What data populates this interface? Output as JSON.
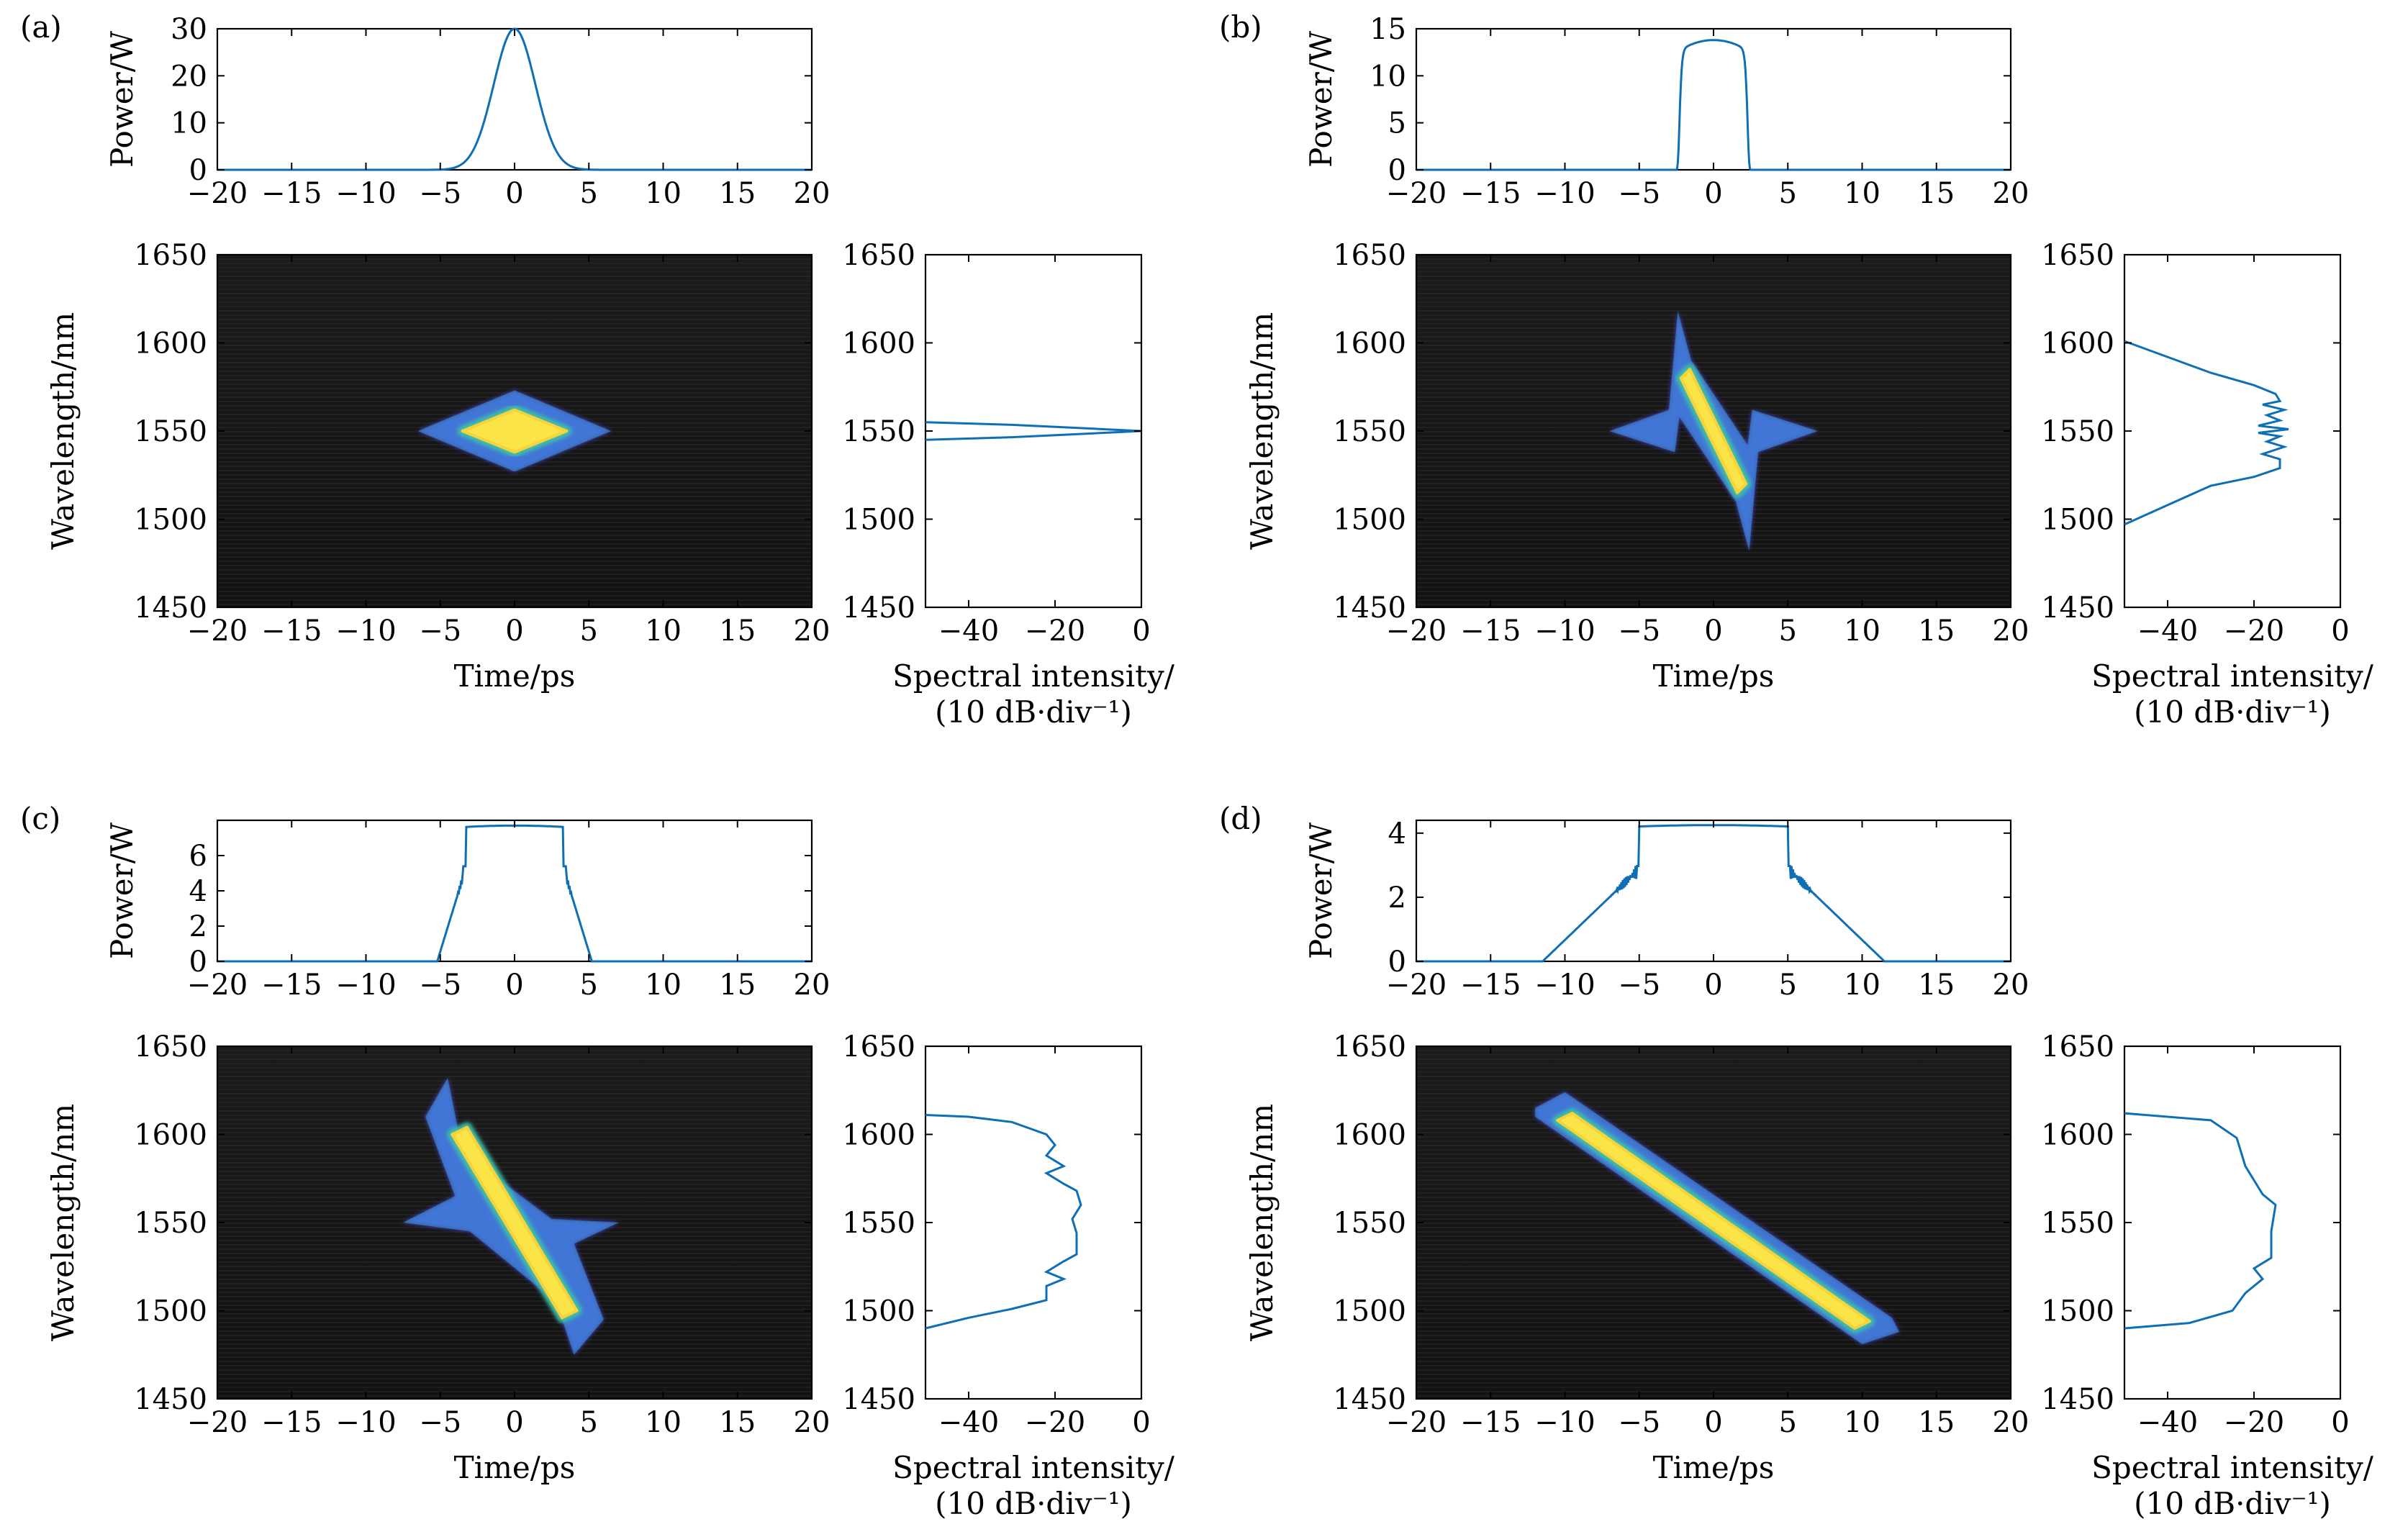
{
  "chart_data": [
    {
      "panel": "(a)",
      "type": "line",
      "power": {
        "ylabel": "Power/W",
        "ylim": [
          0,
          30
        ],
        "yticks": [
          0,
          10,
          20,
          30
        ],
        "xlim": [
          -20,
          20
        ],
        "xticks": [
          -20,
          -15,
          -10,
          -5,
          0,
          5,
          10,
          15,
          20
        ],
        "profile": "gaussian",
        "peak": 30,
        "width_ps": 1.4,
        "flat_half_width_ps": 0,
        "wing_half_width_ps": 0
      },
      "map": {
        "type": "heatmap",
        "xlabel": "Time/ps",
        "ylabel": "Wavelength/nm",
        "xlim": [
          -20,
          20
        ],
        "xticks": [
          -20,
          -15,
          -10,
          -5,
          0,
          5,
          10,
          15,
          20
        ],
        "ylim": [
          1450,
          1650
        ],
        "yticks": [
          1450,
          1500,
          1550,
          1600,
          1650
        ],
        "outline": [
          [
            -6.5,
            1550
          ],
          [
            0,
            1573
          ],
          [
            6.5,
            1550
          ],
          [
            0,
            1527
          ]
        ],
        "core": [
          [
            -3.5,
            1550
          ],
          [
            0,
            1562
          ],
          [
            3.5,
            1550
          ],
          [
            0,
            1538
          ]
        ]
      },
      "spectrum": {
        "xlabel_line1": "Spectral intensity/",
        "xlabel_line2": "(10 dB·div⁻¹)",
        "xlim": [
          -50,
          0
        ],
        "xticks": [
          -40,
          -20,
          0
        ],
        "ylim": [
          1450,
          1650
        ],
        "yticks": [
          1450,
          1500,
          1550,
          1600,
          1650
        ],
        "points": [
          [
            -50,
            1545
          ],
          [
            -30,
            1546.5
          ],
          [
            -10,
            1548.8
          ],
          [
            0,
            1550
          ],
          [
            -10,
            1551.2
          ],
          [
            -30,
            1553.5
          ],
          [
            -50,
            1555
          ]
        ]
      }
    },
    {
      "panel": "(b)",
      "type": "line",
      "power": {
        "ylabel": "Power/W",
        "ylim": [
          0,
          15
        ],
        "yticks": [
          0,
          5,
          10,
          15
        ],
        "xlim": [
          -20,
          20
        ],
        "xticks": [
          -20,
          -15,
          -10,
          -5,
          0,
          5,
          10,
          15,
          20
        ],
        "profile": "supergauss",
        "peak": 13.8,
        "width_ps": 2.2,
        "flat_half_width_ps": 2.3,
        "wing_half_width_ps": 0
      },
      "map": {
        "type": "heatmap",
        "xlabel": "Time/ps",
        "ylabel": "Wavelength/nm",
        "xlim": [
          -20,
          20
        ],
        "xticks": [
          -20,
          -15,
          -10,
          -5,
          0,
          5,
          10,
          15,
          20
        ],
        "ylim": [
          1450,
          1650
        ],
        "yticks": [
          1450,
          1500,
          1550,
          1600,
          1650
        ],
        "outline": [
          [
            -7,
            1550
          ],
          [
            -3,
            1562
          ],
          [
            -2.4,
            1618
          ],
          [
            -1.5,
            1590
          ],
          [
            2.3,
            1542
          ],
          [
            2.6,
            1562
          ],
          [
            7,
            1550
          ],
          [
            3,
            1538
          ],
          [
            2.4,
            1482
          ],
          [
            1.5,
            1510
          ],
          [
            -2.3,
            1558
          ],
          [
            -2.6,
            1538
          ]
        ],
        "core": [
          [
            -2.2,
            1580
          ],
          [
            -1.6,
            1585
          ],
          [
            2.2,
            1520
          ],
          [
            1.6,
            1515
          ]
        ]
      },
      "spectrum": {
        "xlabel_line1": "Spectral intensity/",
        "xlabel_line2": "(10 dB·div⁻¹)",
        "xlim": [
          -50,
          0
        ],
        "xticks": [
          -40,
          -20,
          0
        ],
        "ylim": [
          1450,
          1650
        ],
        "yticks": [
          1450,
          1500,
          1550,
          1600,
          1650
        ],
        "points": [
          [
            -50,
            1497
          ],
          [
            -40,
            1508
          ],
          [
            -30,
            1519
          ],
          [
            -20,
            1524
          ],
          [
            -14,
            1529
          ],
          [
            -14,
            1534
          ],
          [
            -18,
            1537
          ],
          [
            -13,
            1541
          ],
          [
            -17,
            1544
          ],
          [
            -14,
            1547
          ],
          [
            -19,
            1549
          ],
          [
            -12,
            1551
          ],
          [
            -19,
            1553
          ],
          [
            -14,
            1556
          ],
          [
            -17,
            1559
          ],
          [
            -13,
            1562
          ],
          [
            -18,
            1565
          ],
          [
            -14,
            1567
          ],
          [
            -15,
            1571
          ],
          [
            -20,
            1576
          ],
          [
            -30,
            1583
          ],
          [
            -40,
            1592
          ],
          [
            -50,
            1601
          ]
        ]
      }
    },
    {
      "panel": "(c)",
      "type": "line",
      "power": {
        "ylabel": "Power/W",
        "ylim": [
          0,
          8
        ],
        "yticks": [
          0,
          2,
          4,
          6
        ],
        "xlim": [
          -20,
          20
        ],
        "xticks": [
          -20,
          -15,
          -10,
          -5,
          0,
          5,
          10,
          15,
          20
        ],
        "profile": "flat",
        "peak": 7.7,
        "width_ps": 1.0,
        "flat_half_width_ps": 3.3,
        "wing_half_width_ps": 5.2
      },
      "map": {
        "type": "heatmap",
        "xlabel": "Time/ps",
        "ylabel": "Wavelength/nm",
        "xlim": [
          -20,
          20
        ],
        "xticks": [
          -20,
          -15,
          -10,
          -5,
          0,
          5,
          10,
          15,
          20
        ],
        "ylim": [
          1450,
          1650
        ],
        "yticks": [
          1450,
          1500,
          1550,
          1600,
          1650
        ],
        "outline": [
          [
            -6,
            1610
          ],
          [
            -4.5,
            1632
          ],
          [
            -3.5,
            1590
          ],
          [
            2.5,
            1552
          ],
          [
            7,
            1550
          ],
          [
            4,
            1538
          ],
          [
            6,
            1495
          ],
          [
            4,
            1475
          ],
          [
            2.8,
            1505
          ],
          [
            -3,
            1545
          ],
          [
            -7.5,
            1550
          ],
          [
            -4,
            1565
          ]
        ],
        "core": [
          [
            -4.2,
            1600
          ],
          [
            -3.2,
            1604
          ],
          [
            4.2,
            1500
          ],
          [
            3.2,
            1496
          ]
        ]
      },
      "spectrum": {
        "xlabel_line1": "Spectral intensity/",
        "xlabel_line2": "(10 dB·div⁻¹)",
        "xlim": [
          -50,
          0
        ],
        "xticks": [
          -40,
          -20,
          0
        ],
        "ylim": [
          1450,
          1650
        ],
        "yticks": [
          1450,
          1500,
          1550,
          1600,
          1650
        ],
        "points": [
          [
            -50,
            1490
          ],
          [
            -40,
            1496
          ],
          [
            -30,
            1501
          ],
          [
            -22,
            1506
          ],
          [
            -22,
            1514
          ],
          [
            -18,
            1518
          ],
          [
            -22,
            1522
          ],
          [
            -18,
            1528
          ],
          [
            -15,
            1532
          ],
          [
            -15,
            1544
          ],
          [
            -16,
            1552
          ],
          [
            -14,
            1560
          ],
          [
            -15,
            1568
          ],
          [
            -18,
            1572
          ],
          [
            -22,
            1578
          ],
          [
            -18,
            1582
          ],
          [
            -22,
            1588
          ],
          [
            -20,
            1594
          ],
          [
            -22,
            1600
          ],
          [
            -30,
            1607
          ],
          [
            -40,
            1610
          ],
          [
            -50,
            1611
          ]
        ]
      }
    },
    {
      "panel": "(d)",
      "type": "line",
      "power": {
        "ylabel": "Power/W",
        "ylim": [
          0,
          4.4
        ],
        "yticks": [
          0,
          2,
          4
        ],
        "xlim": [
          -20,
          20
        ],
        "xticks": [
          -20,
          -15,
          -10,
          -5,
          0,
          5,
          10,
          15,
          20
        ],
        "profile": "flat",
        "peak": 4.25,
        "width_ps": 1.0,
        "flat_half_width_ps": 5.0,
        "wing_half_width_ps": 11.5
      },
      "map": {
        "type": "heatmap",
        "xlabel": "Time/ps",
        "ylabel": "Wavelength/nm",
        "xlim": [
          -20,
          20
        ],
        "xticks": [
          -20,
          -15,
          -10,
          -5,
          0,
          5,
          10,
          15,
          20
        ],
        "ylim": [
          1450,
          1650
        ],
        "yticks": [
          1450,
          1500,
          1550,
          1600,
          1650
        ],
        "outline": [
          [
            -12,
            1615
          ],
          [
            -10,
            1624
          ],
          [
            12,
            1496
          ],
          [
            12.5,
            1488
          ],
          [
            10,
            1481
          ],
          [
            -12,
            1610
          ]
        ],
        "core": [
          [
            -10.5,
            1608
          ],
          [
            -9.5,
            1612
          ],
          [
            10.5,
            1494
          ],
          [
            9.5,
            1490
          ]
        ]
      },
      "spectrum": {
        "xlabel_line1": "Spectral intensity/",
        "xlabel_line2": "(10 dB·div⁻¹)",
        "xlim": [
          -50,
          0
        ],
        "xticks": [
          -40,
          -20,
          0
        ],
        "ylim": [
          1450,
          1650
        ],
        "yticks": [
          1450,
          1500,
          1550,
          1600,
          1650
        ],
        "points": [
          [
            -50,
            1490
          ],
          [
            -35,
            1493
          ],
          [
            -25,
            1500
          ],
          [
            -22,
            1510
          ],
          [
            -18,
            1518
          ],
          [
            -20,
            1524
          ],
          [
            -16,
            1530
          ],
          [
            -16,
            1545
          ],
          [
            -15,
            1560
          ],
          [
            -18,
            1566
          ],
          [
            -20,
            1574
          ],
          [
            -22,
            1582
          ],
          [
            -24,
            1598
          ],
          [
            -30,
            1608
          ],
          [
            -50,
            1612
          ]
        ]
      }
    }
  ]
}
